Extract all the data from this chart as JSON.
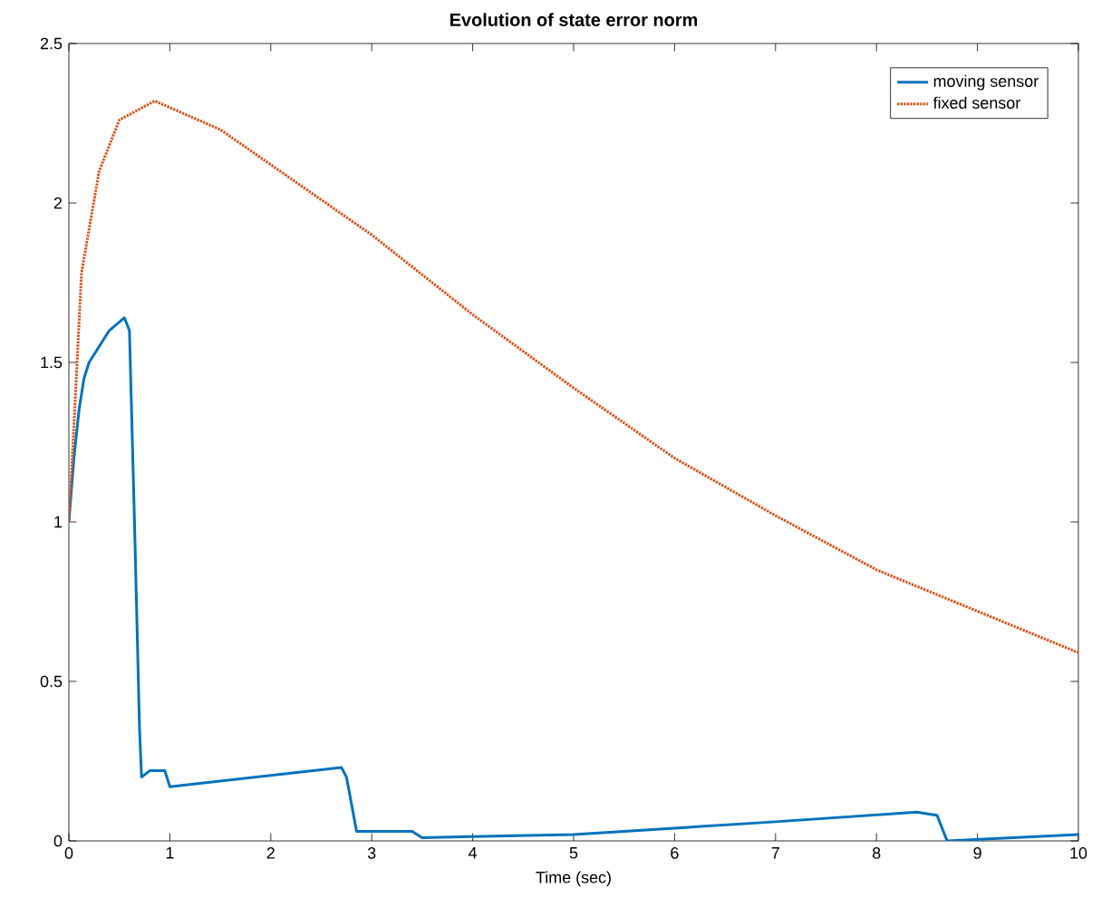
{
  "chart_data": {
    "type": "line",
    "title": "Evolution of state error norm",
    "xlabel": "Time (sec)",
    "xlim": [
      0,
      10
    ],
    "ylim": [
      0,
      2.5
    ],
    "xticks": [
      0,
      1,
      2,
      3,
      4,
      5,
      6,
      7,
      8,
      9,
      10
    ],
    "yticks": [
      0,
      0.5,
      1,
      1.5,
      2,
      2.5
    ],
    "legend": "top right",
    "grid": false,
    "series": [
      {
        "name": "moving sensor",
        "color": "#0072bd",
        "line_style": "solid",
        "x": [
          0,
          0.05,
          0.1,
          0.15,
          0.2,
          0.3,
          0.4,
          0.55,
          0.6,
          0.65,
          0.7,
          0.72,
          0.8,
          0.95,
          1.0,
          2.7,
          2.75,
          2.85,
          3.4,
          3.5,
          5,
          6,
          7,
          8.4,
          8.6,
          8.7,
          10
        ],
        "values": [
          1.0,
          1.2,
          1.35,
          1.45,
          1.5,
          1.55,
          1.6,
          1.64,
          1.6,
          1.0,
          0.35,
          0.2,
          0.22,
          0.22,
          0.17,
          0.23,
          0.2,
          0.03,
          0.03,
          0.01,
          0.02,
          0.04,
          0.06,
          0.09,
          0.08,
          0.0,
          0.02
        ]
      },
      {
        "name": "fixed sensor",
        "color": "#d95319",
        "line_style": "dotted",
        "x": [
          0,
          0.05,
          0.125,
          0.3,
          0.5,
          0.85,
          1.5,
          2,
          3,
          4,
          5,
          6,
          7,
          8,
          9,
          10
        ],
        "values": [
          1.0,
          1.3,
          1.78,
          2.1,
          2.26,
          2.32,
          2.23,
          2.12,
          1.9,
          1.65,
          1.42,
          1.2,
          1.02,
          0.85,
          0.72,
          0.59
        ]
      }
    ]
  }
}
